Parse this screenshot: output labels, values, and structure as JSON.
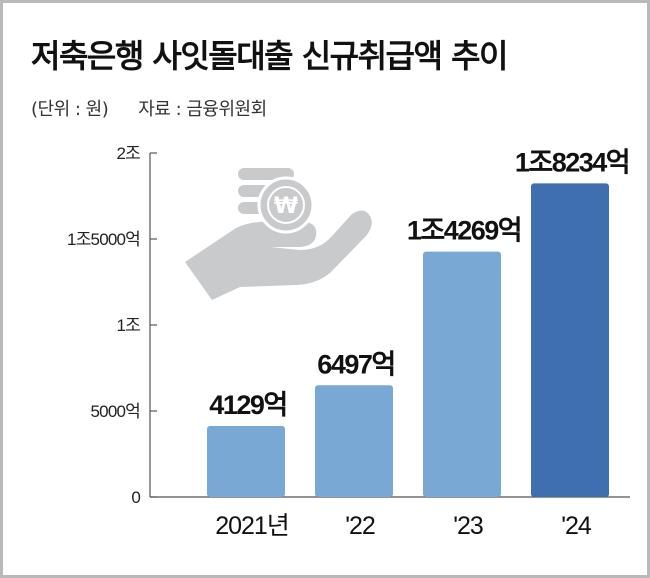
{
  "title": "저축은행 사잇돌대출 신규취급액 추이",
  "unit_label": "(단위 : 원)",
  "source_label": "자료 : 금융위원회",
  "colors": {
    "bar_light": "#7aa8d4",
    "bar_dark": "#3f6fae",
    "axis": "#555555",
    "icon": "#c9cacc"
  },
  "chart_data": {
    "type": "bar",
    "categories": [
      "2021년",
      "'22",
      "'23",
      "'24"
    ],
    "values": [
      4129,
      6497,
      14269,
      18234
    ],
    "value_unit": "억 원",
    "data_labels": [
      "4129억",
      "6497억",
      "1조4269억",
      "1조8234억"
    ],
    "ylim": [
      0,
      20000
    ],
    "yticks": [
      0,
      5000,
      10000,
      15000,
      20000
    ],
    "ytick_labels": [
      "0",
      "5000억",
      "1조",
      "1조5000억",
      "2조"
    ],
    "xlabel": "",
    "ylabel": "",
    "grid": false,
    "highlight_index": 3
  }
}
